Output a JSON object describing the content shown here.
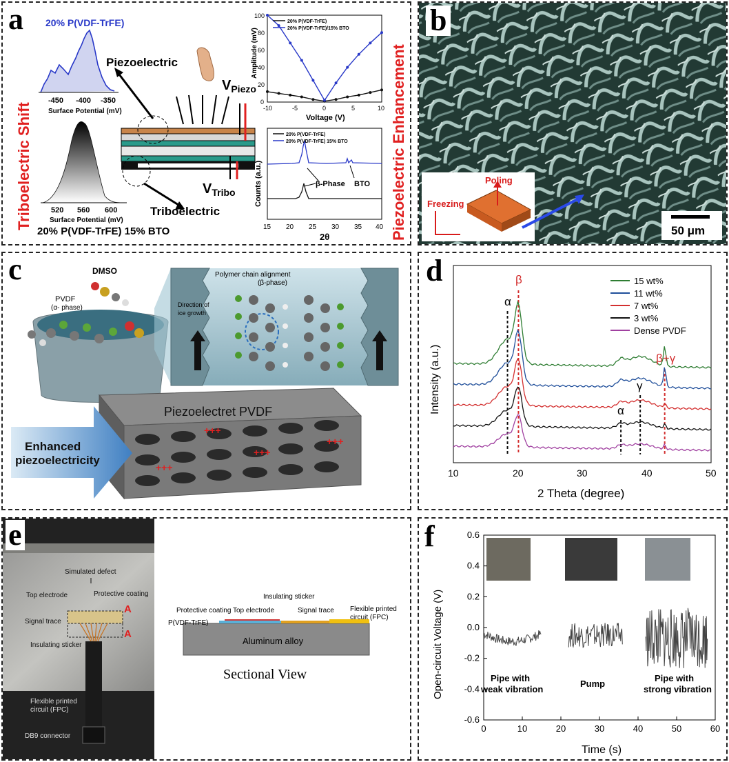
{
  "panels": {
    "a": {
      "label": "a",
      "side_left": "Triboelectric Shift",
      "side_right": "Piezoelectric Enhancement",
      "top_hist_title": "20% P(VDF-TrFE)",
      "top_hist_ticks": [
        "-450",
        "-400",
        "-350"
      ],
      "top_hist_xlabel": "Surface Potential (mV)",
      "bot_hist_ticks": [
        "520",
        "560",
        "600"
      ],
      "bot_hist_xlabel": "Surface Potential (mV)",
      "bot_hist_title": "20% P(VDF-TrFE) 15% BTO",
      "piezo_label": "Piezoelectric",
      "tribo_label": "Triboelectric",
      "vpiezo_main": "V",
      "vpiezo_sub": "Piezo",
      "vtribo_main": "V",
      "vtribo_sub": "Tribo",
      "amp_ylabel": "Amplitude (mV)",
      "amp_xlabel": "Voltage (V)",
      "amp_legend": [
        "20% P(VDF-TrFE)",
        "20% P(VDF-TrFE)/15% BTO"
      ],
      "amp_xticks": [
        "-10",
        "-5",
        "0",
        "5",
        "10"
      ],
      "amp_yticks": [
        "0",
        "20",
        "40",
        "60",
        "80",
        "100"
      ],
      "xrd_ylabel": "Counts (a.u.)",
      "xrd_xlabel": "2θ",
      "xrd_legend": [
        "20% P(VDF-TrFE)",
        "20% P(VDF-TrFE) 15% BTO"
      ],
      "xrd_xticks": [
        "15",
        "20",
        "25",
        "30",
        "35",
        "40"
      ],
      "beta_phase": "β-Phase",
      "bto": "BTO"
    },
    "b": {
      "label": "b",
      "poling": "Poling",
      "freezing": "Freezing",
      "scalebar": "50 μm"
    },
    "c": {
      "label": "c",
      "dmso": "DMSO",
      "pvdf": "PVDF",
      "pvdf_phase": "(α- phase)",
      "chain_title": "Polymer chain alignment",
      "chain_phase": "(β-phase)",
      "ice_1": "Direction of",
      "ice_2": "ice growth",
      "piezoelectret": "Piezoelectret PVDF",
      "enhanced_1": "Enhanced",
      "enhanced_2": "piezoelectricity",
      "plus_signs": "+++"
    },
    "d": {
      "label": "d",
      "xlabel": "2 Theta (degree)",
      "ylabel": "Intensity (a.u.)",
      "xticks": [
        "10",
        "20",
        "30",
        "40",
        "50"
      ],
      "peak_labels": [
        "α",
        "β",
        "α",
        "γ",
        "β+γ"
      ]
    },
    "e": {
      "label": "e",
      "simulated_defect": "Simulated defect",
      "top_electrode": "Top electrode",
      "protective_coating": "Protective coating",
      "signal_trace": "Signal trace",
      "insulating_sticker": "Insulating sticker",
      "fpc_1": "Flexible printed",
      "fpc_2": "circuit (FPC)",
      "db9": "DB9 connector",
      "marker": "A",
      "sec_protective": "Protective coating",
      "sec_top_electrode": "Top electrode",
      "sec_insulating": "Insulating sticker",
      "sec_signal": "Signal trace",
      "sec_fpc_1": "Flexible printed",
      "sec_fpc_2": "circuit (FPC)",
      "sec_pvdf": "P(VDF-TrFE)",
      "sec_alloy": "Aluminum alloy",
      "sectional_view": "Sectional View"
    },
    "f": {
      "label": "f",
      "ylabel": "Open-circuit Voltage (V)",
      "xlabel": "Time (s)",
      "yticks": [
        "0.6",
        "0.4",
        "0.2",
        "0.0",
        "-0.2",
        "-0.4",
        "-0.6"
      ],
      "xticks": [
        "0",
        "10",
        "20",
        "30",
        "40",
        "50",
        "60"
      ],
      "cond_1a": "Pipe with",
      "cond_1b": "weak vibration",
      "cond_2": "Pump",
      "cond_3a": "Pipe with",
      "cond_3b": "strong vibration"
    }
  },
  "chart_data": [
    {
      "type": "line",
      "panel": "a-amplitude",
      "xlabel": "Voltage (V)",
      "ylabel": "Amplitude (mV)",
      "xlim": [
        -10,
        10
      ],
      "ylim": [
        0,
        100
      ],
      "series": [
        {
          "name": "20% P(VDF-TrFE)",
          "x": [
            -10,
            -8,
            -6,
            -4,
            -2,
            0,
            2,
            4,
            6,
            8,
            10
          ],
          "y": [
            12,
            10,
            8,
            6,
            3,
            1,
            3,
            6,
            8,
            11,
            14
          ]
        },
        {
          "name": "20% P(VDF-TrFE)/15% BTO",
          "x": [
            -10,
            -8,
            -6,
            -4,
            -2,
            0,
            2,
            4,
            6,
            8,
            10
          ],
          "y": [
            100,
            88,
            68,
            48,
            25,
            2,
            22,
            40,
            55,
            68,
            80
          ]
        }
      ]
    },
    {
      "type": "line",
      "panel": "a-xrd",
      "xlabel": "2θ",
      "ylabel": "Counts (a.u.)",
      "xlim": [
        15,
        40
      ],
      "series": [
        {
          "name": "20% P(VDF-TrFE)",
          "peaks": [
            20
          ]
        },
        {
          "name": "20% P(VDF-TrFE) 15% BTO",
          "peaks": [
            20,
            31.5,
            33
          ]
        }
      ]
    },
    {
      "type": "line",
      "panel": "d",
      "xlabel": "2 Theta (degree)",
      "ylabel": "Intensity (a.u.)",
      "xlim": [
        10,
        50
      ],
      "grid": false,
      "legend": "top-right",
      "series": [
        {
          "name": "15 wt%",
          "color": "#2e7d32",
          "offset": 4
        },
        {
          "name": "11 wt%",
          "color": "#1f4e9a",
          "offset": 3
        },
        {
          "name": "7 wt%",
          "color": "#d32f2f",
          "offset": 2
        },
        {
          "name": "3 wt%",
          "color": "#111111",
          "offset": 1
        },
        {
          "name": "Dense PVDF",
          "color": "#a040a0",
          "offset": 0
        }
      ],
      "reference_lines": [
        18.4,
        20.1,
        36.0,
        39.0,
        42.8
      ]
    },
    {
      "type": "line",
      "panel": "f",
      "xlabel": "Time (s)",
      "ylabel": "Open-circuit Voltage (V)",
      "xlim": [
        0,
        60
      ],
      "ylim": [
        -0.6,
        0.6
      ],
      "segments": [
        {
          "x_range": [
            0,
            15
          ],
          "y_center": -0.04,
          "amplitude": 0.03
        },
        {
          "x_range": [
            22,
            36
          ],
          "y_center": -0.05,
          "amplitude": 0.08
        },
        {
          "x_range": [
            42,
            58
          ],
          "y_center": -0.07,
          "amplitude": 0.2
        }
      ]
    }
  ]
}
